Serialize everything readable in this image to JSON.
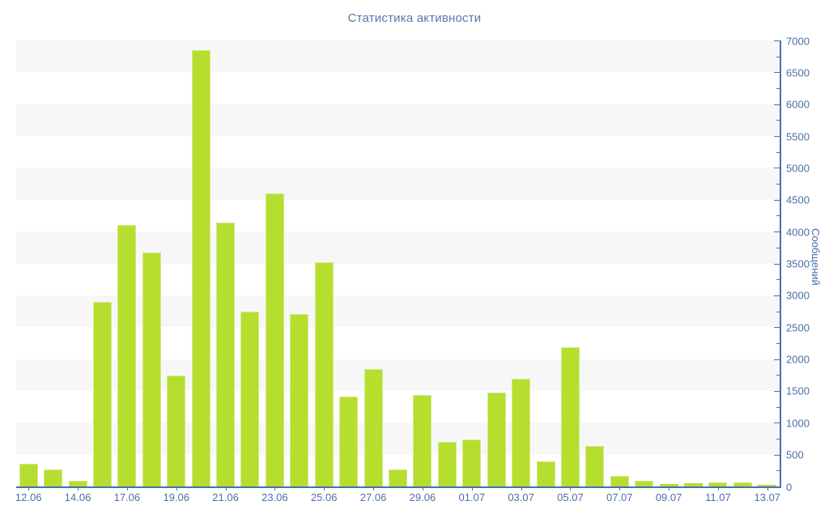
{
  "page": {
    "title": "Статистика активности"
  },
  "colors": {
    "background": "#ffffff",
    "stripe": "#f7f7f7",
    "bar_fill": "#b6de2f",
    "bar_border": "#d3ea8c",
    "axis_line": "#4a6fae",
    "tick_text": "#4d6ea8",
    "title_text": "#5878ab"
  },
  "chart_data": {
    "type": "bar",
    "title": "Статистика активности",
    "xlabel": "",
    "ylabel": "Сообщений",
    "categories": [
      "12.06",
      "13.06",
      "14.06",
      "16.06",
      "17.06",
      "18.06",
      "19.06",
      "20.06",
      "21.06",
      "22.06",
      "23.06",
      "24.06",
      "25.06",
      "26.06",
      "27.06",
      "28.06",
      "29.06",
      "30.06",
      "01.07",
      "02.07",
      "03.07",
      "04.07",
      "05.07",
      "06.07",
      "07.07",
      "08.07",
      "09.07",
      "10.07",
      "11.07",
      "12.07",
      "13.07"
    ],
    "values": [
      350,
      270,
      90,
      2900,
      4100,
      3670,
      1740,
      6850,
      4140,
      2740,
      4600,
      2700,
      3520,
      1410,
      1840,
      270,
      1440,
      700,
      740,
      1480,
      1690,
      400,
      2180,
      640,
      170,
      90,
      40,
      50,
      70,
      60,
      30
    ],
    "xtick_labels": [
      "12.06",
      "14.06",
      "17.06",
      "19.06",
      "21.06",
      "23.06",
      "25.06",
      "27.06",
      "29.06",
      "01.07",
      "03.07",
      "05.07",
      "07.07",
      "09.07",
      "11.07",
      "13.07"
    ],
    "xtick_every": 2,
    "ylim": [
      0,
      7000
    ],
    "ytick_step": 500,
    "ytick_minor_step": 250,
    "yaxis_side": "right",
    "grid": "alternating horizontal background bands, 500 units each",
    "legend": "none"
  }
}
